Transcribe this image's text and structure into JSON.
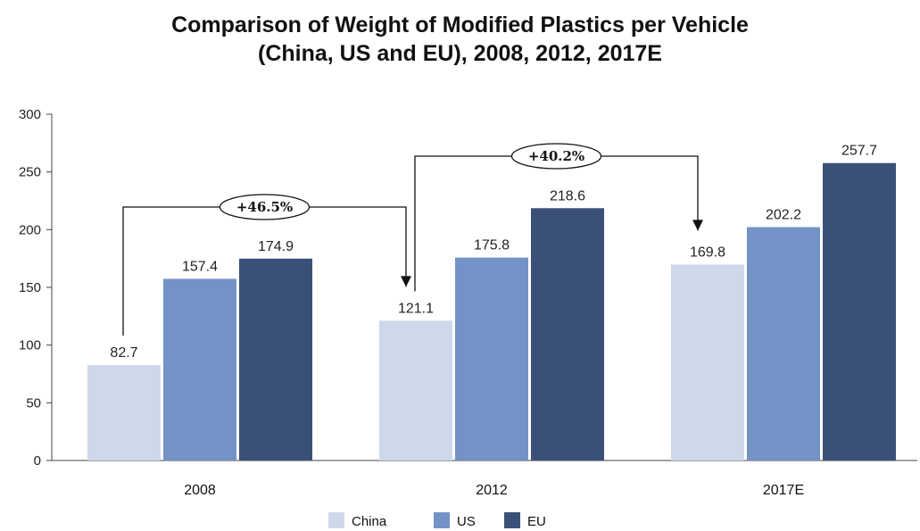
{
  "title_line_1": "Comparison of Weight of Modified Plastics per Vehicle",
  "title_line_2": "(China, US and EU), 2008, 2012, 2017E",
  "chart_data": {
    "type": "bar",
    "title": "Comparison of Weight of Modified Plastics per Vehicle (China, US and EU), 2008, 2012, 2017E",
    "categories": [
      "2008",
      "2012",
      "2017E"
    ],
    "series": [
      {
        "name": "China",
        "values": [
          82.7,
          121.1,
          169.8
        ],
        "color": "#cdd8ea"
      },
      {
        "name": "US",
        "values": [
          157.4,
          175.8,
          202.2
        ],
        "color": "#7393c6"
      },
      {
        "name": "EU",
        "values": [
          174.9,
          218.6,
          257.7
        ],
        "color": "#3a5079"
      }
    ],
    "ylim": [
      0,
      300
    ],
    "yticks": [
      0,
      50,
      100,
      150,
      200,
      250,
      300
    ],
    "xlabel": "",
    "ylabel": "",
    "grid": false,
    "legend_position": "bottom",
    "annotations": [
      {
        "text": "+46.5%",
        "from": "China 2008",
        "to": "China 2012"
      },
      {
        "text": "+40.2%",
        "from": "China 2012",
        "to": "China 2017E"
      }
    ]
  }
}
